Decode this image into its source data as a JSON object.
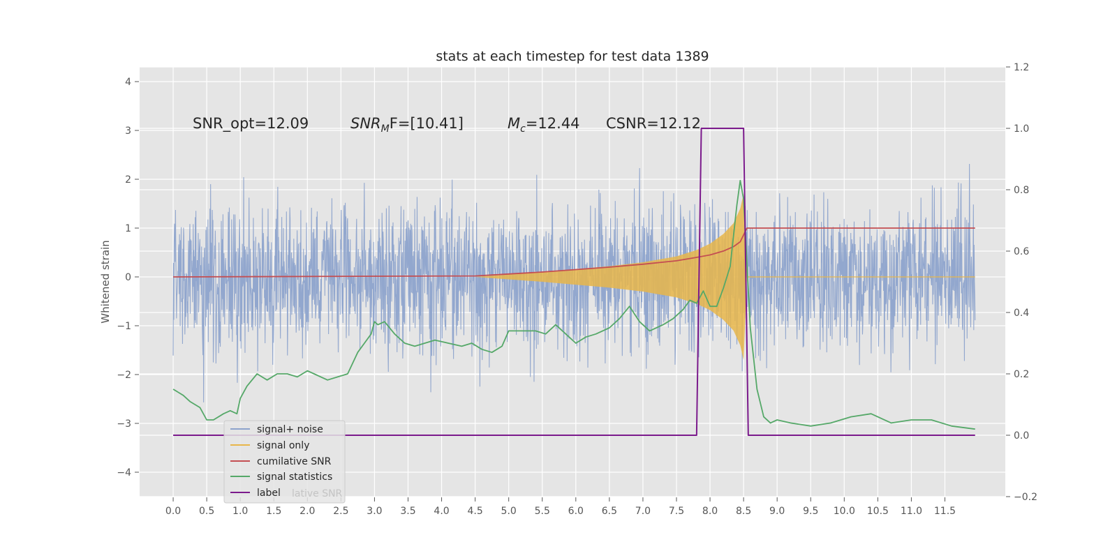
{
  "chart_data": {
    "type": "line",
    "title": "stats at each timestep for test data 1389",
    "ylabel": "Whitened strain",
    "xlim": [
      -0.5,
      12.4
    ],
    "ylim": [
      -4.5,
      4.3
    ],
    "y2lim": [
      -0.2,
      1.2
    ],
    "x_ticks": [
      0.0,
      0.5,
      1.0,
      1.5,
      2.0,
      2.5,
      3.0,
      3.5,
      4.0,
      4.5,
      5.0,
      5.5,
      6.0,
      6.5,
      7.0,
      7.5,
      8.0,
      8.5,
      9.0,
      9.5,
      10.0,
      10.5,
      11.0,
      11.5
    ],
    "x_tick_labels": [
      "0.0",
      "0.5",
      "1.0",
      "1.5",
      "2.0",
      "2.5",
      "3.0",
      "3.5",
      "4.0",
      "4.5",
      "5.0",
      "5.5",
      "6.0",
      "6.5",
      "7.0",
      "7.5",
      "8.0",
      "8.5",
      "9.0",
      "9.5",
      "10.0",
      "10.5",
      "11.0",
      "11.5"
    ],
    "y_ticks": [
      -4,
      -3,
      -2,
      -1,
      0,
      1,
      2,
      3,
      4
    ],
    "y_tick_labels": [
      "−4",
      "−3",
      "−2",
      "−1",
      "0",
      "1",
      "2",
      "3",
      "4"
    ],
    "y2_ticks": [
      -0.2,
      0.0,
      0.2,
      0.4,
      0.6,
      0.8,
      1.0,
      1.2
    ],
    "y2_tick_labels": [
      "−0.2",
      "0.0",
      "0.2",
      "0.4",
      "0.6",
      "0.8",
      "1.0",
      "1.2"
    ],
    "grid": true,
    "legend_position": "bottom-left",
    "annotations": {
      "snr_opt": "SNR_opt=12.09",
      "snr_mf_main": "SNR",
      "snr_mf_sub": "M",
      "snr_mf_rest": "F=[10.41]",
      "mc_main": "M",
      "mc_sub": "c",
      "mc_rest": "=12.44",
      "csnr": "CSNR=12.12"
    },
    "series": [
      {
        "name": "signal+ noise",
        "axis": "left",
        "color": "#8da3cc",
        "style": "dense noise, |amplitude| roughly 1.5–3.5 whitened strain units across 0.0–11.95",
        "x_range": [
          0.0,
          11.95
        ]
      },
      {
        "name": "signal only",
        "axis": "left",
        "color": "#e8b64a",
        "style": "chirp envelope growing from 4.5 to peak ≈ ±1.7 at 8.5, then 0",
        "envelope_x": [
          4.5,
          5.5,
          6.5,
          7.0,
          7.5,
          7.8,
          8.0,
          8.2,
          8.35,
          8.45,
          8.5,
          8.55
        ],
        "envelope_y": [
          0.0,
          0.1,
          0.22,
          0.3,
          0.42,
          0.55,
          0.68,
          0.88,
          1.1,
          1.4,
          1.7,
          0.0
        ]
      },
      {
        "name": "cumilative SNR",
        "axis": "left",
        "color": "#c44e52",
        "x": [
          0.0,
          4.5,
          5.0,
          5.5,
          6.0,
          6.5,
          7.0,
          7.5,
          7.8,
          8.0,
          8.2,
          8.35,
          8.45,
          8.5,
          8.55,
          11.95
        ],
        "values": [
          0.0,
          0.02,
          0.06,
          0.1,
          0.15,
          0.2,
          0.26,
          0.33,
          0.4,
          0.45,
          0.53,
          0.62,
          0.72,
          0.86,
          1.0,
          1.0
        ]
      },
      {
        "name": "signal statistics",
        "axis": "right",
        "color": "#55a868",
        "x": [
          0.0,
          0.15,
          0.25,
          0.4,
          0.5,
          0.6,
          0.75,
          0.85,
          0.95,
          1.0,
          1.1,
          1.25,
          1.4,
          1.55,
          1.7,
          1.85,
          2.0,
          2.1,
          2.3,
          2.45,
          2.6,
          2.75,
          2.85,
          2.95,
          3.0,
          3.05,
          3.15,
          3.3,
          3.45,
          3.6,
          3.75,
          3.9,
          4.1,
          4.3,
          4.45,
          4.6,
          4.75,
          4.9,
          5.0,
          5.2,
          5.4,
          5.55,
          5.7,
          5.9,
          6.0,
          6.15,
          6.3,
          6.5,
          6.65,
          6.8,
          6.95,
          7.1,
          7.3,
          7.45,
          7.6,
          7.7,
          7.8,
          7.9,
          8.0,
          8.1,
          8.2,
          8.3,
          8.4,
          8.45,
          8.5,
          8.55,
          8.6,
          8.7,
          8.8,
          8.9,
          9.0,
          9.2,
          9.5,
          9.8,
          10.1,
          10.4,
          10.7,
          11.0,
          11.3,
          11.6,
          11.95
        ],
        "values": [
          0.15,
          0.13,
          0.11,
          0.09,
          0.05,
          0.05,
          0.07,
          0.08,
          0.07,
          0.12,
          0.16,
          0.2,
          0.18,
          0.2,
          0.2,
          0.19,
          0.21,
          0.2,
          0.18,
          0.19,
          0.2,
          0.27,
          0.3,
          0.33,
          0.37,
          0.36,
          0.37,
          0.33,
          0.3,
          0.29,
          0.3,
          0.31,
          0.3,
          0.29,
          0.3,
          0.28,
          0.27,
          0.29,
          0.34,
          0.34,
          0.34,
          0.33,
          0.36,
          0.32,
          0.3,
          0.32,
          0.33,
          0.35,
          0.38,
          0.42,
          0.37,
          0.34,
          0.36,
          0.38,
          0.41,
          0.44,
          0.43,
          0.47,
          0.42,
          0.42,
          0.48,
          0.55,
          0.75,
          0.83,
          0.77,
          0.56,
          0.35,
          0.15,
          0.06,
          0.04,
          0.05,
          0.04,
          0.03,
          0.04,
          0.06,
          0.07,
          0.04,
          0.05,
          0.05,
          0.03,
          0.02
        ]
      },
      {
        "name": "label",
        "axis": "right",
        "color": "#7b1a8c",
        "x": [
          0.0,
          7.8,
          7.87,
          8.5,
          8.57,
          11.95
        ],
        "values": [
          0.0,
          0.0,
          1.0,
          1.0,
          0.0,
          0.0
        ]
      }
    ],
    "legend_entries": [
      "signal+ noise",
      "signal only",
      "cumilative SNR",
      "signal statistics",
      "label"
    ],
    "legend_residual_text": "lative SNR"
  }
}
